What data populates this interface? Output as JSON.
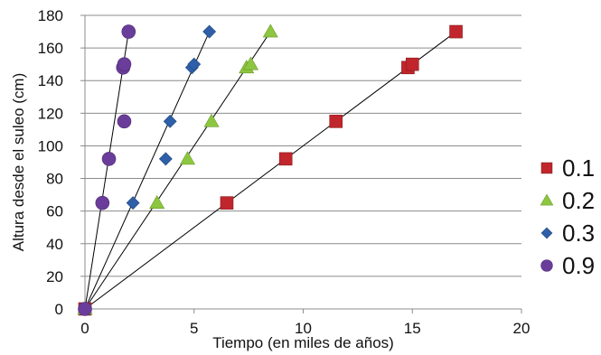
{
  "chart_data": {
    "type": "scatter",
    "xlabel": "Tiempo (en miles de años)",
    "ylabel": "Altura desde el suleo (cm)",
    "xlim": [
      0,
      20
    ],
    "ylim": [
      0,
      180
    ],
    "xticks": [
      0,
      5,
      10,
      15,
      20
    ],
    "yticks": [
      0,
      20,
      40,
      60,
      80,
      100,
      120,
      140,
      160,
      180
    ],
    "grid": "horizontal",
    "legend_position": "right",
    "series": [
      {
        "name": "0.1",
        "marker": "square",
        "color": "#c0262b",
        "x": [
          0,
          6.5,
          9.2,
          11.5,
          14.8,
          15.0,
          17.0
        ],
        "y": [
          0,
          65,
          92,
          115,
          148,
          150,
          170
        ],
        "trendline": [
          [
            0,
            0
          ],
          [
            17.0,
            170
          ]
        ]
      },
      {
        "name": "0.2",
        "marker": "triangle",
        "color": "#8dc63f",
        "x": [
          0,
          3.3,
          4.7,
          5.8,
          7.4,
          7.6,
          8.5
        ],
        "y": [
          0,
          65,
          92,
          115,
          148,
          150,
          170
        ],
        "trendline": [
          [
            0,
            0
          ],
          [
            8.5,
            170
          ]
        ]
      },
      {
        "name": "0.3",
        "marker": "diamond",
        "color": "#2e5fa8",
        "x": [
          0,
          2.2,
          3.7,
          3.9,
          4.9,
          5.0,
          5.7
        ],
        "y": [
          0,
          65,
          92,
          115,
          148,
          150,
          170
        ],
        "trendline": [
          [
            0,
            0
          ],
          [
            5.7,
            170
          ]
        ]
      },
      {
        "name": "0.9",
        "marker": "circle",
        "color": "#6a3d9a",
        "x": [
          0,
          0.8,
          1.1,
          1.8,
          1.75,
          1.8,
          2.0
        ],
        "y": [
          0,
          65,
          92,
          115,
          148,
          150,
          170
        ],
        "trendline": [
          [
            0,
            0
          ],
          [
            2.0,
            170
          ]
        ]
      }
    ]
  }
}
